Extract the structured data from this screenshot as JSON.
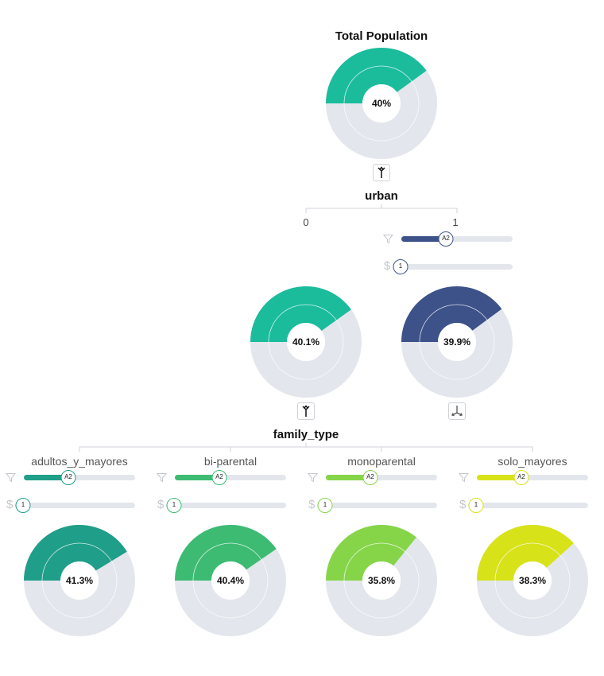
{
  "root": {
    "title": "Total Population",
    "value_label": "40%",
    "fraction": 0.4,
    "color": "#1abc9c"
  },
  "level1": {
    "variable": "urban",
    "ticks": [
      "0",
      "1"
    ],
    "filter_knob": "A2",
    "cost_knob": "1",
    "filter_fraction": 0.4,
    "cost_fraction": 0.0,
    "filter_color": "#3d5289",
    "nodes": [
      {
        "value_label": "40.1%",
        "fraction": 0.401,
        "color": "#1abc9c"
      },
      {
        "value_label": "39.9%",
        "fraction": 0.399,
        "color": "#3d5289"
      }
    ]
  },
  "level2": {
    "variable": "family_type",
    "nodes": [
      {
        "label": "adultos_y_mayores",
        "value_label": "41.3%",
        "fraction": 0.413,
        "color": "#1f9e89",
        "filter_knob": "A2",
        "cost_knob": "1",
        "filter_fraction": 0.4,
        "cost_fraction": 0.0
      },
      {
        "label": "bi-parental",
        "value_label": "40.4%",
        "fraction": 0.404,
        "color": "#3dbb72",
        "filter_knob": "A2",
        "cost_knob": "1",
        "filter_fraction": 0.4,
        "cost_fraction": 0.0
      },
      {
        "label": "monoparental",
        "value_label": "35.8%",
        "fraction": 0.358,
        "color": "#86d549",
        "filter_knob": "A2",
        "cost_knob": "1",
        "filter_fraction": 0.4,
        "cost_fraction": 0.0
      },
      {
        "label": "solo_mayores",
        "value_label": "38.3%",
        "fraction": 0.383,
        "color": "#d8e219",
        "filter_knob": "A2",
        "cost_knob": "1",
        "filter_fraction": 0.4,
        "cost_fraction": 0.0
      }
    ]
  },
  "icons": {
    "filter": "filter-icon",
    "cost": "dollar-icon",
    "merge": "merge-arrows-icon",
    "split": "split-arrows-icon"
  },
  "colors": {
    "track": "#e3e6ec",
    "donut_bg": "#e3e6ec",
    "tree_line": "#cfd3d8"
  }
}
